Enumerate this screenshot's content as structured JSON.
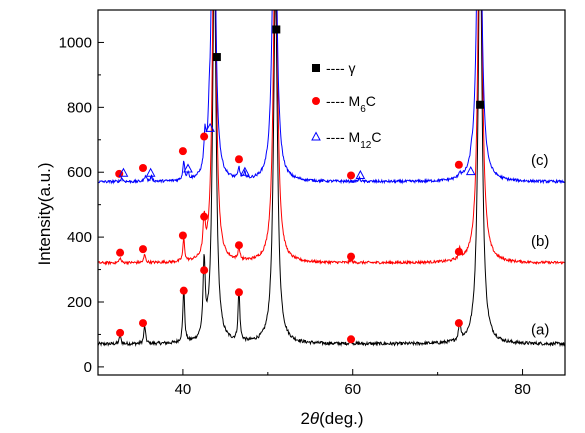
{
  "chart_data": {
    "type": "line",
    "xlabel_theta": "θ",
    "xlabel_prefix": "2",
    "xlabel_suffix": "(deg.)",
    "ylabel": "Intensity(a.u.)",
    "xlim": [
      30,
      85
    ],
    "ylim": [
      -25,
      1100
    ],
    "x_ticks": [
      40,
      60,
      80
    ],
    "y_ticks": [
      0,
      200,
      400,
      600,
      800,
      1000
    ],
    "x_tick_labels": [
      "40",
      "60",
      "80"
    ],
    "y_tick_labels": [
      "0",
      "200",
      "400",
      "600",
      "800",
      "1000"
    ],
    "legend": [
      {
        "marker": "square",
        "color": "#000000",
        "dash": "----",
        "label": "γ",
        "sub": "",
        "tail": ""
      },
      {
        "marker": "circle",
        "color": "#ff0000",
        "dash": "----",
        "label": "M",
        "sub": "6",
        "tail": "C"
      },
      {
        "marker": "triangle",
        "color": "#0000ff",
        "dash": "----",
        "label": "M",
        "sub": "12",
        "tail": "C"
      }
    ],
    "series": [
      {
        "label": "(a)",
        "color": "#000000",
        "baseline": 70,
        "noise": 5,
        "label_x": 81,
        "label_y": 100,
        "peaks": [
          {
            "x": 32.6,
            "h": 25,
            "w": 0.12
          },
          {
            "x": 35.5,
            "h": 55,
            "w": 0.12
          },
          {
            "x": 40.1,
            "h": 170,
            "w": 0.12
          },
          {
            "x": 42.5,
            "h": 230,
            "w": 0.15
          },
          {
            "x": 43.7,
            "h": 1200,
            "w": 0.25
          },
          {
            "x": 46.6,
            "h": 160,
            "w": 0.12
          },
          {
            "x": 50.9,
            "h": 1100,
            "w": 0.28
          },
          {
            "x": 59.8,
            "h": 10,
            "w": 0.12
          },
          {
            "x": 72.6,
            "h": 60,
            "w": 0.14
          },
          {
            "x": 75.0,
            "h": 1300,
            "w": 0.28
          }
        ],
        "phase_marks": [
          {
            "x": 32.6,
            "y": 105,
            "m": "circle"
          },
          {
            "x": 35.3,
            "y": 135,
            "m": "circle"
          },
          {
            "x": 40.1,
            "y": 235,
            "m": "circle"
          },
          {
            "x": 42.5,
            "y": 298,
            "m": "circle"
          },
          {
            "x": 46.6,
            "y": 230,
            "m": "circle"
          },
          {
            "x": 59.8,
            "y": 85,
            "m": "circle"
          },
          {
            "x": 72.5,
            "y": 135,
            "m": "circle"
          }
        ]
      },
      {
        "label": "(b)",
        "color": "#ff0000",
        "baseline": 320,
        "noise": 4,
        "label_x": 81,
        "label_y": 373,
        "peaks": [
          {
            "x": 32.6,
            "h": 15,
            "w": 0.12
          },
          {
            "x": 35.5,
            "h": 25,
            "w": 0.12
          },
          {
            "x": 40.1,
            "h": 70,
            "w": 0.12
          },
          {
            "x": 42.5,
            "h": 110,
            "w": 0.15
          },
          {
            "x": 43.7,
            "h": 1200,
            "w": 0.25
          },
          {
            "x": 46.6,
            "h": 40,
            "w": 0.12
          },
          {
            "x": 50.9,
            "h": 1100,
            "w": 0.28
          },
          {
            "x": 59.8,
            "h": 8,
            "w": 0.12
          },
          {
            "x": 72.6,
            "h": 30,
            "w": 0.14
          },
          {
            "x": 75.0,
            "h": 1300,
            "w": 0.28
          }
        ],
        "phase_marks": [
          {
            "x": 32.6,
            "y": 352,
            "m": "circle"
          },
          {
            "x": 35.3,
            "y": 363,
            "m": "circle"
          },
          {
            "x": 40.0,
            "y": 405,
            "m": "circle"
          },
          {
            "x": 42.5,
            "y": 463,
            "m": "circle"
          },
          {
            "x": 46.6,
            "y": 375,
            "m": "circle"
          },
          {
            "x": 59.8,
            "y": 340,
            "m": "circle"
          },
          {
            "x": 72.5,
            "y": 355,
            "m": "circle"
          }
        ]
      },
      {
        "label": "(c)",
        "color": "#0000ff",
        "baseline": 570,
        "noise": 4,
        "label_x": 81,
        "label_y": 622,
        "peaks": [
          {
            "x": 32.8,
            "h": 12,
            "w": 0.12
          },
          {
            "x": 35.6,
            "h": 20,
            "w": 0.12
          },
          {
            "x": 36.3,
            "h": 15,
            "w": 0.12
          },
          {
            "x": 40.1,
            "h": 60,
            "w": 0.12
          },
          {
            "x": 40.6,
            "h": 20,
            "w": 0.12
          },
          {
            "x": 42.6,
            "h": 100,
            "w": 0.15
          },
          {
            "x": 43.1,
            "h": 70,
            "w": 0.12
          },
          {
            "x": 43.6,
            "h": 1200,
            "w": 0.25
          },
          {
            "x": 46.6,
            "h": 35,
            "w": 0.12
          },
          {
            "x": 47.3,
            "h": 18,
            "w": 0.12
          },
          {
            "x": 50.8,
            "h": 1100,
            "w": 0.28
          },
          {
            "x": 60.8,
            "h": 10,
            "w": 0.12
          },
          {
            "x": 72.6,
            "h": 15,
            "w": 0.14
          },
          {
            "x": 74.0,
            "h": 20,
            "w": 0.12
          },
          {
            "x": 74.9,
            "h": 1300,
            "w": 0.28
          }
        ],
        "phase_marks": [
          {
            "x": 32.5,
            "y": 595,
            "m": "circle"
          },
          {
            "x": 35.3,
            "y": 613,
            "m": "circle"
          },
          {
            "x": 40.0,
            "y": 665,
            "m": "circle"
          },
          {
            "x": 42.5,
            "y": 710,
            "m": "circle"
          },
          {
            "x": 46.6,
            "y": 640,
            "m": "circle"
          },
          {
            "x": 59.8,
            "y": 590,
            "m": "circle"
          },
          {
            "x": 72.5,
            "y": 623,
            "m": "circle"
          },
          {
            "x": 33.0,
            "y": 597,
            "m": "triangle"
          },
          {
            "x": 36.2,
            "y": 597,
            "m": "triangle"
          },
          {
            "x": 40.6,
            "y": 610,
            "m": "triangle"
          },
          {
            "x": 43.2,
            "y": 735,
            "m": "triangle"
          },
          {
            "x": 47.3,
            "y": 600,
            "m": "triangle"
          },
          {
            "x": 60.9,
            "y": 590,
            "m": "triangle"
          },
          {
            "x": 73.9,
            "y": 602,
            "m": "triangle"
          }
        ]
      }
    ],
    "gamma_marks": [
      {
        "x": 44.0,
        "y": 955
      },
      {
        "x": 51.0,
        "y": 1040
      },
      {
        "x": 75.0,
        "y": 808
      }
    ]
  }
}
